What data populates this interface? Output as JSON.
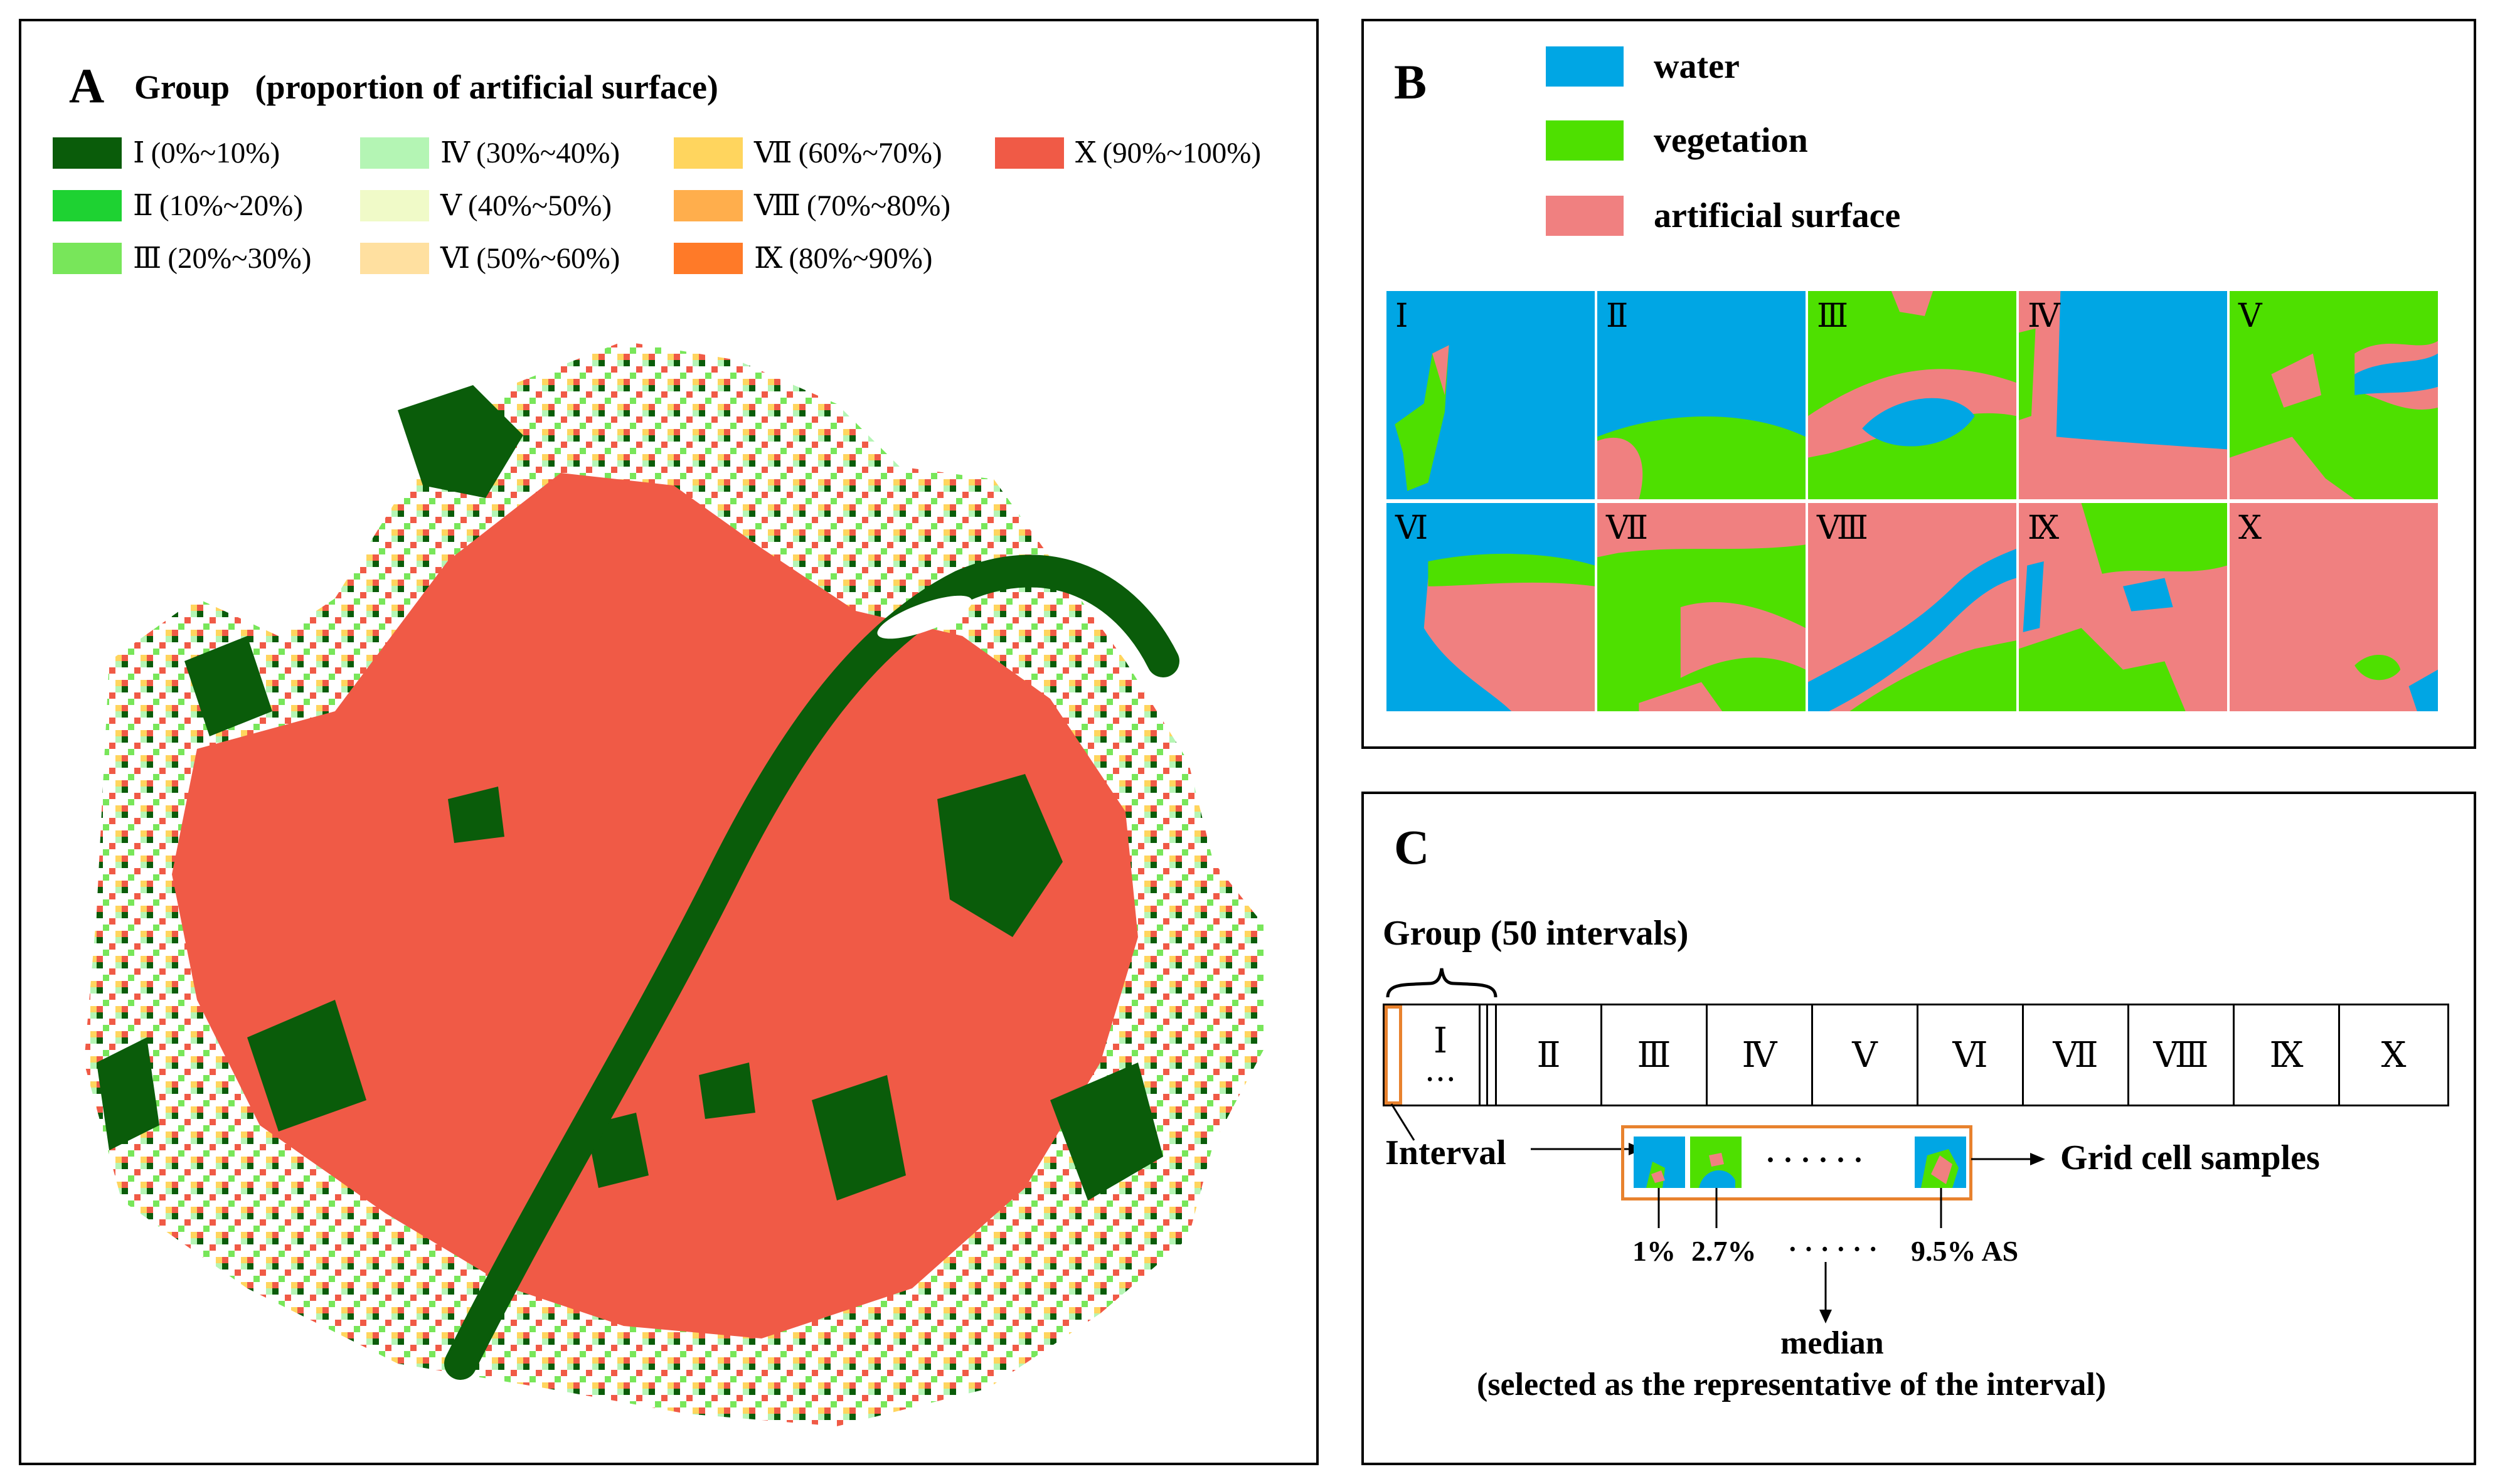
{
  "colors": {
    "water": "#00A6E4",
    "vegetation": "#4EE000",
    "artificial": "#F08080",
    "orange": "#E8822E",
    "groups": [
      "#0A5C0A",
      "#1ED232",
      "#78E65A",
      "#B4F5B4",
      "#F0FAC8",
      "#FFE0A0",
      "#FFD55E",
      "#FFAE4C",
      "#FF7A28",
      "#F05A46"
    ]
  },
  "panel_a": {
    "label": "A",
    "title": "Group   (proportion of artificial surface)",
    "legend": [
      {
        "roman": "Ⅰ",
        "range": "(0%~10%)",
        "icon": "swatch-square"
      },
      {
        "roman": "Ⅱ",
        "range": "(10%~20%)",
        "icon": "swatch-square"
      },
      {
        "roman": "Ⅲ",
        "range": "(20%~30%)",
        "icon": "swatch-square"
      },
      {
        "roman": "Ⅳ",
        "range": "(30%~40%)",
        "icon": "swatch-square"
      },
      {
        "roman": "Ⅴ",
        "range": "(40%~50%)",
        "icon": "swatch-square"
      },
      {
        "roman": "Ⅵ",
        "range": "(50%~60%)",
        "icon": "swatch-square"
      },
      {
        "roman": "Ⅶ",
        "range": "(60%~70%)",
        "icon": "swatch-square"
      },
      {
        "roman": "Ⅷ",
        "range": "(70%~80%)",
        "icon": "swatch-square"
      },
      {
        "roman": "Ⅸ",
        "range": "(80%~90%)",
        "icon": "swatch-square"
      },
      {
        "roman": "Ⅹ",
        "range": "(90%~100%)",
        "icon": "swatch-square"
      }
    ]
  },
  "panel_b": {
    "label": "B",
    "legend": [
      {
        "label": "water",
        "icon": "water-swatch"
      },
      {
        "label": "vegetation",
        "icon": "vegetation-swatch"
      },
      {
        "label": "artificial surface",
        "icon": "artificial-swatch"
      }
    ],
    "tiles": [
      "Ⅰ",
      "Ⅱ",
      "Ⅲ",
      "Ⅳ",
      "Ⅴ",
      "Ⅵ",
      "Ⅶ",
      "Ⅷ",
      "Ⅸ",
      "Ⅹ"
    ]
  },
  "panel_c": {
    "label": "C",
    "group_label": "Group (50 intervals)",
    "groups": [
      "Ⅰ",
      "Ⅱ",
      "Ⅲ",
      "Ⅳ",
      "Ⅴ",
      "Ⅵ",
      "Ⅶ",
      "Ⅷ",
      "Ⅸ",
      "Ⅹ"
    ],
    "ellipsis_first": "• • •",
    "interval_label": "Interval",
    "samples_label": "Grid cell samples",
    "dots": "· · · · · ·",
    "sample_values": [
      "1%",
      "2.7%",
      "9.5% AS"
    ],
    "median_label": "median",
    "median_note": "(selected as the representative of the interval)"
  }
}
